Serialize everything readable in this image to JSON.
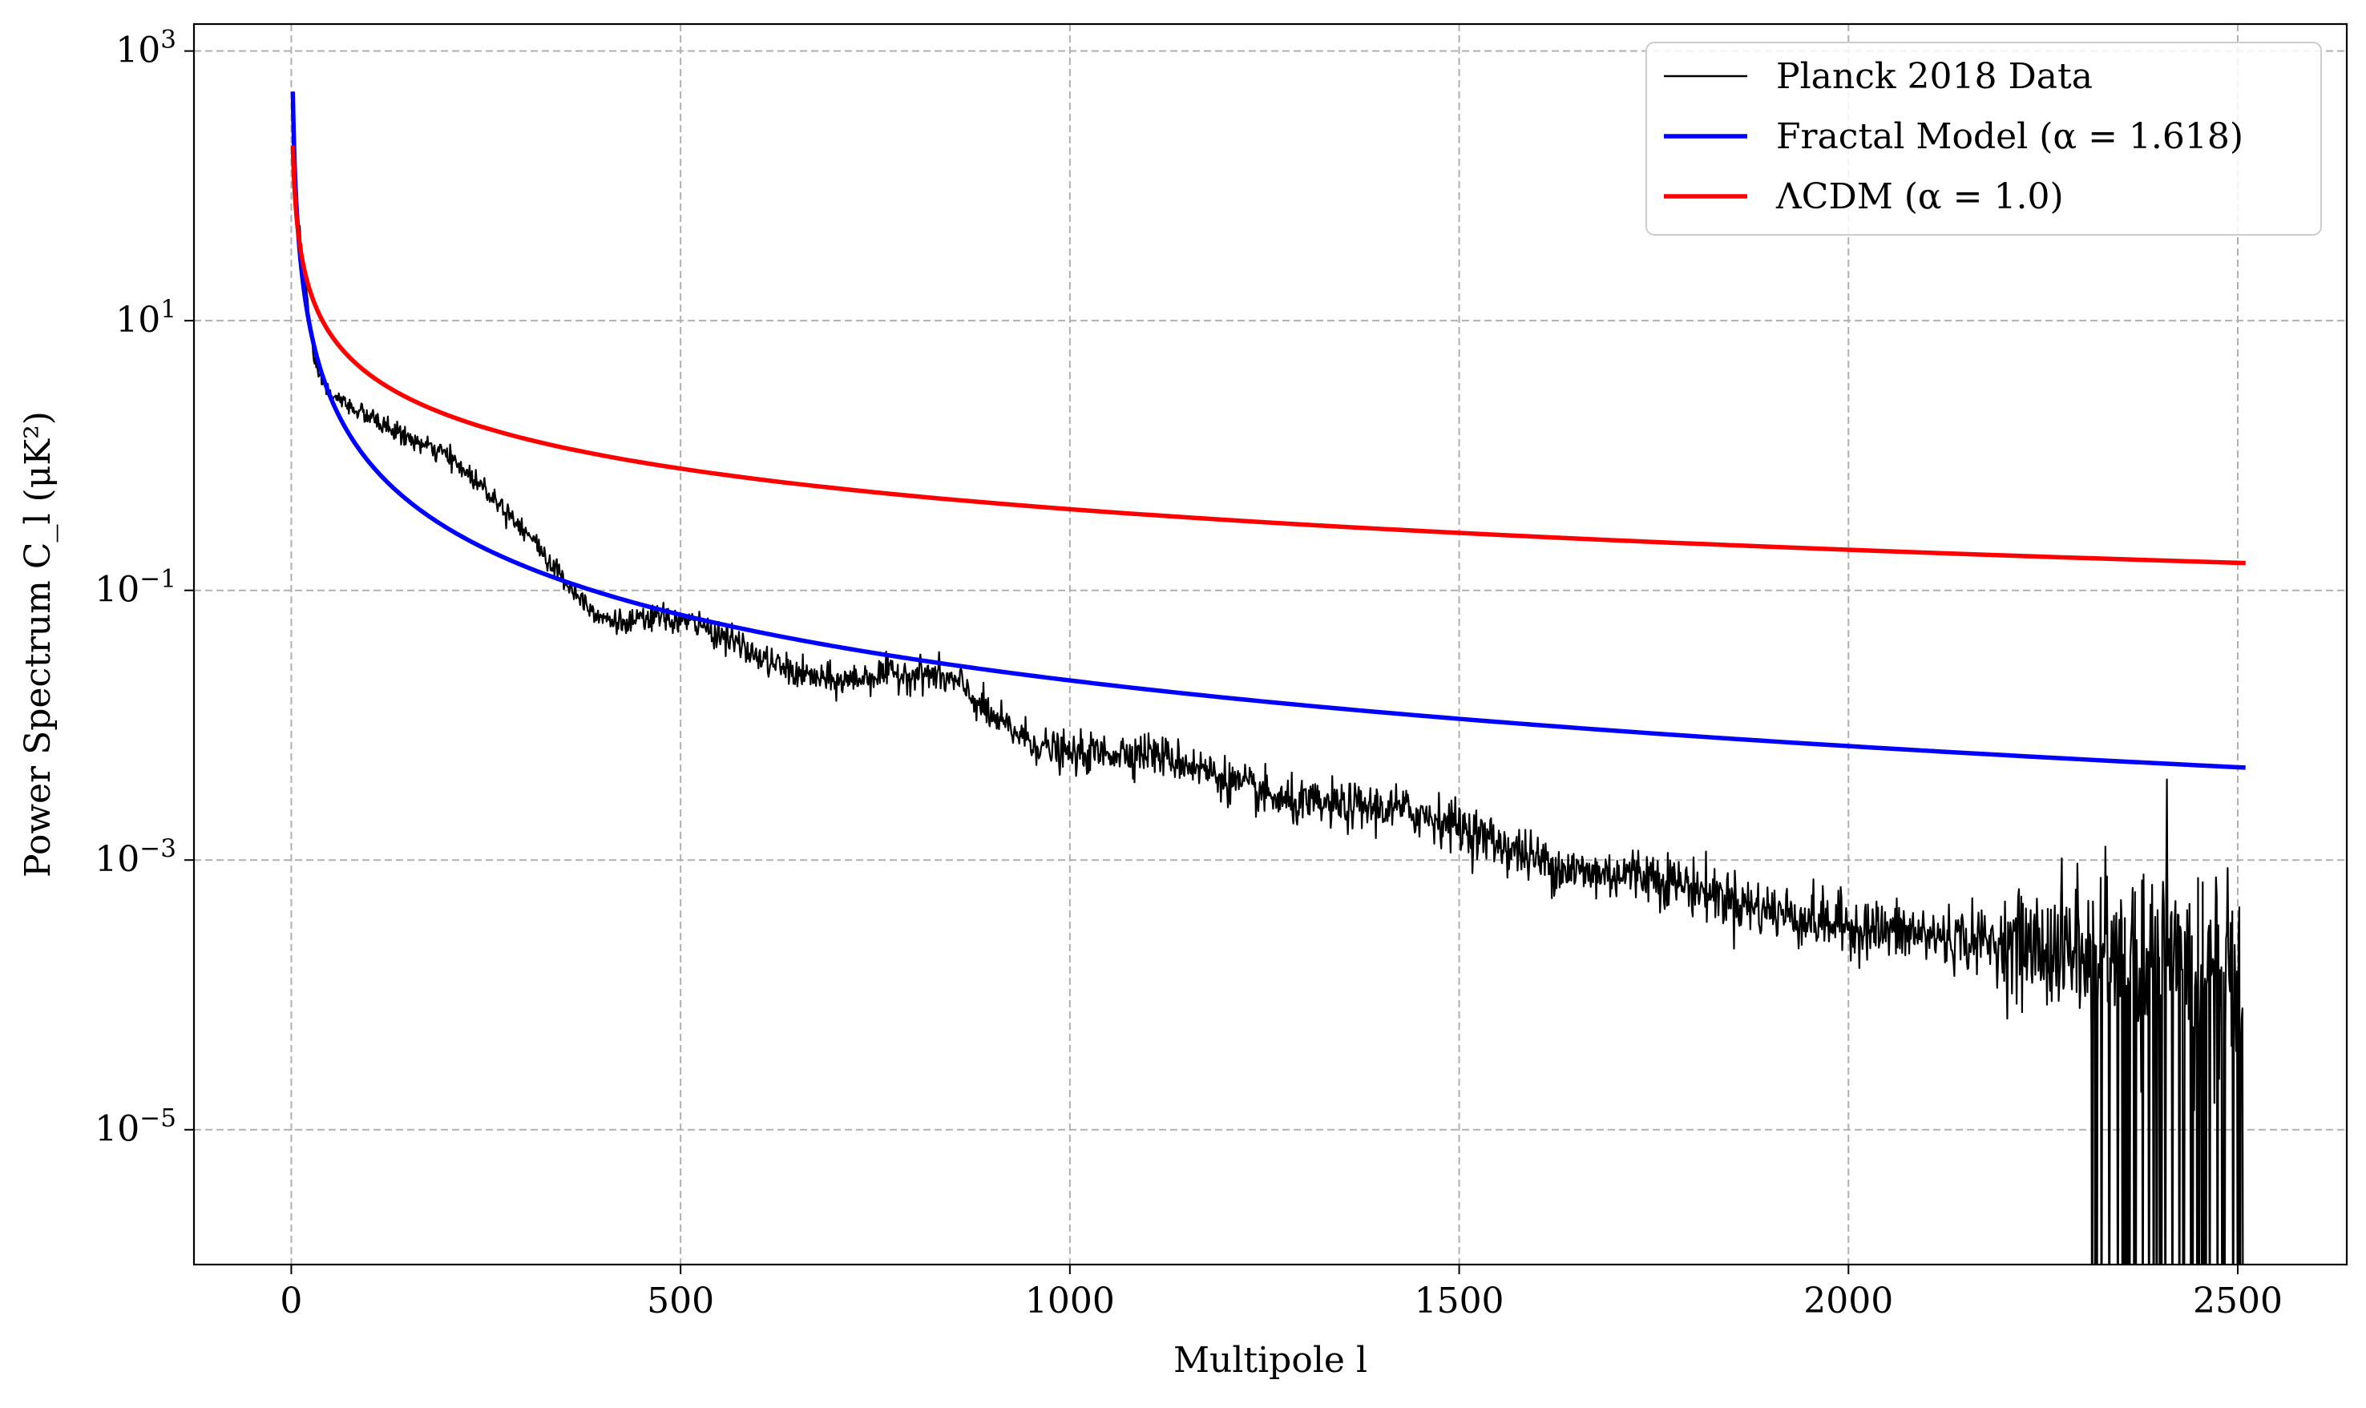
{
  "chart_data": {
    "type": "line",
    "title": "",
    "xlabel": "Multipole l",
    "ylabel": "Power Spectrum C_l (μK²)",
    "xlim": [
      -125,
      2640
    ],
    "ylim_log10": [
      -6.0,
      3.2
    ],
    "yscale": "log",
    "grid": true,
    "legend_position": "top-right",
    "x_ticks": [
      0,
      500,
      1000,
      1500,
      2000,
      2500
    ],
    "x_tick_labels": [
      "0",
      "500",
      "1000",
      "1500",
      "2000",
      "2500"
    ],
    "y_ticks_log10": [
      3,
      1,
      -1,
      -3,
      -5
    ],
    "y_tick_labels": [
      {
        "base": "10",
        "exp": "3"
      },
      {
        "base": "10",
        "exp": "1"
      },
      {
        "base": "10",
        "exp": "−1"
      },
      {
        "base": "10",
        "exp": "−3"
      },
      {
        "base": "10",
        "exp": "−5"
      }
    ],
    "series": [
      {
        "name": "Planck 2018 Data",
        "color": "#000000",
        "style": "noisy-thin",
        "x_range": [
          2,
          2508
        ],
        "anchor_points_log10": [
          [
            2,
            2.3
          ],
          [
            10,
            1.7
          ],
          [
            20,
            1.2
          ],
          [
            30,
            0.65
          ],
          [
            50,
            0.45
          ],
          [
            80,
            0.35
          ],
          [
            120,
            0.22
          ],
          [
            160,
            0.1
          ],
          [
            200,
            0.0
          ],
          [
            250,
            -0.25
          ],
          [
            300,
            -0.55
          ],
          [
            340,
            -0.85
          ],
          [
            370,
            -1.05
          ],
          [
            400,
            -1.2
          ],
          [
            430,
            -1.25
          ],
          [
            470,
            -1.2
          ],
          [
            520,
            -1.25
          ],
          [
            560,
            -1.35
          ],
          [
            600,
            -1.5
          ],
          [
            650,
            -1.62
          ],
          [
            700,
            -1.68
          ],
          [
            760,
            -1.62
          ],
          [
            820,
            -1.62
          ],
          [
            860,
            -1.7
          ],
          [
            900,
            -1.95
          ],
          [
            960,
            -2.15
          ],
          [
            1000,
            -2.22
          ],
          [
            1060,
            -2.2
          ],
          [
            1100,
            -2.2
          ],
          [
            1160,
            -2.3
          ],
          [
            1220,
            -2.45
          ],
          [
            1280,
            -2.58
          ],
          [
            1340,
            -2.6
          ],
          [
            1420,
            -2.62
          ],
          [
            1480,
            -2.7
          ],
          [
            1540,
            -2.85
          ],
          [
            1600,
            -3.0
          ],
          [
            1660,
            -3.1
          ],
          [
            1740,
            -3.1
          ],
          [
            1800,
            -3.2
          ],
          [
            1880,
            -3.35
          ],
          [
            1960,
            -3.45
          ],
          [
            2040,
            -3.52
          ],
          [
            2120,
            -3.57
          ],
          [
            2200,
            -3.62
          ],
          [
            2280,
            -3.68
          ],
          [
            2360,
            -3.72
          ],
          [
            2440,
            -3.8
          ],
          [
            2508,
            -3.9
          ]
        ]
      },
      {
        "name": "Fractal Model (α = 1.618)",
        "color": "#0000ff",
        "style": "power-law",
        "amplitude": 500,
        "alpha": 1.618,
        "x_start": 2,
        "x_end": 2510
      },
      {
        "name": "ΛCDM (α = 1.0)",
        "color": "#ff0000",
        "style": "power-law",
        "amplitude": 200,
        "alpha": 1.0,
        "x_start": 2,
        "x_end": 2510
      }
    ]
  },
  "legend": {
    "items": [
      {
        "label": "Planck 2018 Data",
        "color": "#000000"
      },
      {
        "label": "Fractal Model (α = 1.618)",
        "color": "#0000ff"
      },
      {
        "label": "ΛCDM (α = 1.0)",
        "color": "#ff0000"
      }
    ]
  },
  "colors": {
    "grid": "#b0b0b0",
    "axes": "#000000",
    "background": "#ffffff"
  }
}
